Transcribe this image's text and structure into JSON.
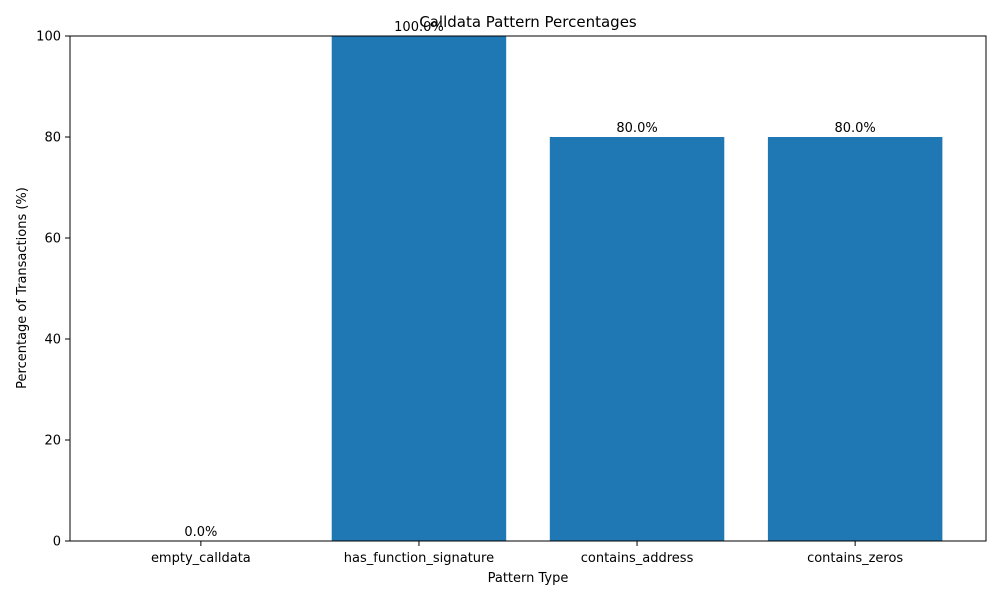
{
  "chart_data": {
    "type": "bar",
    "title": "Calldata Pattern Percentages",
    "xlabel": "Pattern Type",
    "ylabel": "Percentage of Transactions (%)",
    "categories": [
      "empty_calldata",
      "has_function_signature",
      "contains_address",
      "contains_zeros"
    ],
    "values": [
      0.0,
      100.0,
      80.0,
      80.0
    ],
    "value_labels": [
      "0.0%",
      "100.0%",
      "80.0%",
      "80.0%"
    ],
    "ylim": [
      0,
      100
    ],
    "yticks": [
      0,
      20,
      40,
      60,
      80,
      100
    ],
    "bar_color": "#1f77b4",
    "grid": false
  }
}
